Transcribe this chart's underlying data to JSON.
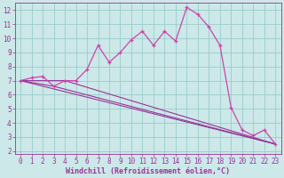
{
  "xlabel": "Windchill (Refroidissement éolien,°C)",
  "xlim": [
    -0.5,
    23.5
  ],
  "ylim": [
    1.8,
    12.5
  ],
  "xticks": [
    0,
    1,
    2,
    3,
    4,
    5,
    6,
    7,
    8,
    9,
    10,
    11,
    12,
    13,
    14,
    15,
    16,
    17,
    18,
    19,
    20,
    21,
    22,
    23
  ],
  "yticks": [
    2,
    3,
    4,
    5,
    6,
    7,
    8,
    9,
    10,
    11,
    12
  ],
  "bg_color": "#cce8e8",
  "grid_color": "#99cccc",
  "line_color": "#993399",
  "line_color2": "#cc44aa",
  "series1_x": [
    0,
    1,
    2,
    3,
    4,
    5,
    6,
    7,
    8,
    9,
    10,
    11,
    12,
    13,
    14,
    15,
    16,
    17,
    18,
    19,
    20,
    21,
    22,
    23
  ],
  "series1_y": [
    7.0,
    7.2,
    7.3,
    6.6,
    7.0,
    7.0,
    7.8,
    9.5,
    8.3,
    9.0,
    9.9,
    10.5,
    9.5,
    10.5,
    9.8,
    12.2,
    11.7,
    10.8,
    9.5,
    5.1,
    3.5,
    3.1,
    3.5,
    2.5
  ],
  "series2_x": [
    0,
    23
  ],
  "series2_y": [
    7.0,
    2.5
  ],
  "series3_x": [
    0,
    4,
    23
  ],
  "series3_y": [
    7.0,
    7.0,
    2.5
  ],
  "series4_x": [
    0,
    3,
    23
  ],
  "series4_y": [
    7.0,
    6.6,
    2.5
  ],
  "tick_fontsize": 5.5,
  "xlabel_fontsize": 6.0
}
